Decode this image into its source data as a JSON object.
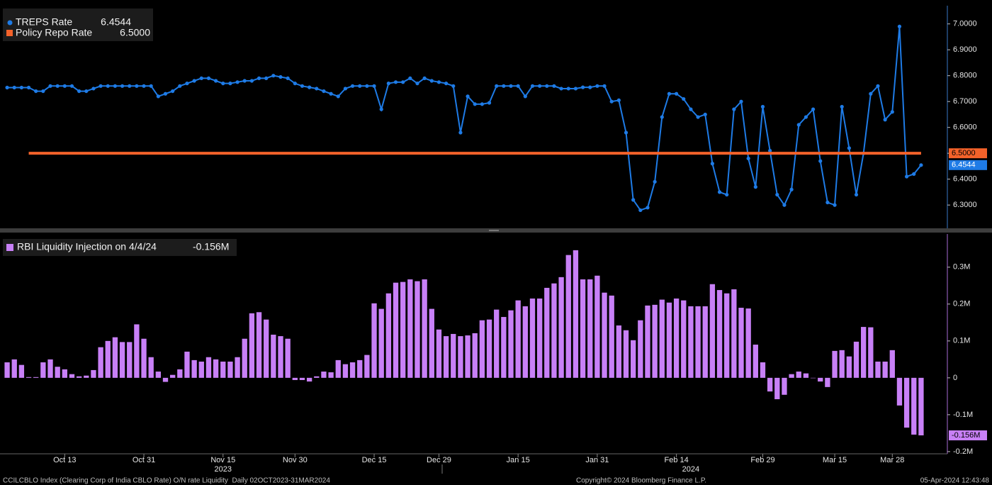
{
  "chart_data": [
    {
      "type": "line",
      "series": [
        {
          "name": "TREPS Rate",
          "color": "#1e7be6",
          "markers": true,
          "legend_value": "6.4544",
          "values": [
            6.754,
            6.754,
            6.754,
            6.754,
            6.74,
            6.74,
            6.76,
            6.76,
            6.76,
            6.76,
            6.74,
            6.74,
            6.75,
            6.76,
            6.76,
            6.76,
            6.76,
            6.76,
            6.76,
            6.76,
            6.76,
            6.72,
            6.73,
            6.74,
            6.76,
            6.77,
            6.78,
            6.79,
            6.79,
            6.78,
            6.77,
            6.77,
            6.775,
            6.78,
            6.78,
            6.79,
            6.79,
            6.8,
            6.795,
            6.79,
            6.77,
            6.76,
            6.755,
            6.75,
            6.74,
            6.73,
            6.72,
            6.75,
            6.76,
            6.76,
            6.76,
            6.76,
            6.67,
            6.77,
            6.775,
            6.775,
            6.79,
            6.77,
            6.79,
            6.78,
            6.775,
            6.77,
            6.76,
            6.58,
            6.72,
            6.69,
            6.69,
            6.695,
            6.76,
            6.76,
            6.76,
            6.76,
            6.72,
            6.76,
            6.76,
            6.76,
            6.76,
            6.75,
            6.75,
            6.75,
            6.755,
            6.755,
            6.76,
            6.76,
            6.7,
            6.705,
            6.58,
            6.32,
            6.28,
            6.29,
            6.39,
            6.64,
            6.73,
            6.73,
            6.71,
            6.67,
            6.64,
            6.65,
            6.46,
            6.35,
            6.34,
            6.67,
            6.7,
            6.48,
            6.37,
            6.68,
            6.51,
            6.34,
            6.3,
            6.36,
            6.61,
            6.64,
            6.67,
            6.47,
            6.31,
            6.3,
            6.68,
            6.52,
            6.34,
            6.5,
            6.73,
            6.76,
            6.63,
            6.66,
            6.99,
            6.41,
            6.42,
            6.4544
          ]
        },
        {
          "name": "Policy Repo Rate",
          "color": "#f4622a",
          "markers": false,
          "legend_value": "6.5000",
          "values": [
            null,
            null,
            null,
            6.5,
            6.5,
            6.5,
            6.5,
            6.5,
            6.5,
            6.5,
            6.5,
            6.5,
            6.5,
            6.5,
            6.5,
            6.5,
            6.5,
            6.5,
            6.5,
            6.5,
            6.5,
            6.5,
            6.5,
            6.5,
            6.5,
            6.5,
            6.5,
            6.5,
            6.5,
            6.5,
            6.5,
            6.5,
            6.5,
            6.5,
            6.5,
            6.5,
            6.5,
            6.5,
            6.5,
            6.5,
            6.5,
            6.5,
            6.5,
            6.5,
            6.5,
            6.5,
            6.5,
            6.5,
            6.5,
            6.5,
            6.5,
            6.5,
            6.5,
            6.5,
            6.5,
            6.5,
            6.5,
            6.5,
            6.5,
            6.5,
            6.5,
            6.5,
            6.5,
            6.5,
            6.5,
            6.5,
            6.5,
            6.5,
            6.5,
            6.5,
            6.5,
            6.5,
            6.5,
            6.5,
            6.5,
            6.5,
            6.5,
            6.5,
            6.5,
            6.5,
            6.5,
            6.5,
            6.5,
            6.5,
            6.5,
            6.5,
            6.5,
            6.5,
            6.5,
            6.5,
            6.5,
            6.5,
            6.5,
            6.5,
            6.5,
            6.5,
            6.5,
            6.5,
            6.5,
            6.5,
            6.5,
            6.5,
            6.5,
            6.5,
            6.5,
            6.5,
            6.5,
            6.5,
            6.5,
            6.5,
            6.5,
            6.5,
            6.5,
            6.5,
            6.5,
            6.5,
            6.5,
            6.5,
            6.5,
            6.5,
            6.5,
            6.5,
            6.5,
            6.5,
            6.5,
            6.5,
            6.5,
            6.5
          ]
        }
      ],
      "ylim": [
        6.21,
        7.065
      ],
      "yticks": [
        {
          "value": 6.3,
          "label": "6.3000"
        },
        {
          "value": 6.4,
          "label": "6.4000"
        },
        {
          "value": 6.5,
          "label": "6.5000"
        },
        {
          "value": 6.6,
          "label": "6.6000"
        },
        {
          "value": 6.7,
          "label": "6.7000"
        },
        {
          "value": 6.8,
          "label": "6.8000"
        },
        {
          "value": 6.9,
          "label": "6.9000"
        },
        {
          "value": 7.0,
          "label": "7.0000"
        }
      ],
      "grid": false
    },
    {
      "type": "bar",
      "categories": [
        null,
        null,
        null,
        null,
        null,
        null,
        null,
        null,
        "Oct 13",
        null,
        null,
        null,
        null,
        null,
        null,
        null,
        null,
        null,
        null,
        "Oct 31",
        null,
        null,
        null,
        null,
        null,
        null,
        null,
        null,
        null,
        null,
        "Nov 15",
        null,
        null,
        null,
        null,
        null,
        null,
        null,
        null,
        null,
        "Nov 30",
        null,
        null,
        null,
        null,
        null,
        null,
        null,
        null,
        null,
        null,
        "Dec 15",
        null,
        null,
        null,
        null,
        null,
        null,
        null,
        null,
        "Dec 29",
        null,
        null,
        null,
        null,
        null,
        null,
        null,
        null,
        null,
        null,
        "Jan 15",
        null,
        null,
        null,
        null,
        null,
        null,
        null,
        null,
        null,
        null,
        "Jan 31",
        null,
        null,
        null,
        null,
        null,
        null,
        null,
        null,
        null,
        null,
        "Feb 14",
        null,
        null,
        null,
        null,
        null,
        null,
        null,
        null,
        null,
        null,
        null,
        "Feb 29",
        null,
        null,
        null,
        null,
        null,
        null,
        null,
        null,
        null,
        "Mar 15",
        null,
        null,
        null,
        null,
        null,
        null,
        null,
        "Mar 28",
        null,
        null,
        null,
        null
      ],
      "x_groups": [
        {
          "value": 30,
          "label": "2023"
        },
        {
          "value": 95,
          "label": "2024"
        }
      ],
      "series": [
        {
          "name": "RBI Liquidity Injection on 4/4/24",
          "color": "#c880f7",
          "legend_value": "-0.156M",
          "values": [
            0.042,
            0.05,
            0.035,
            0.002,
            0.002,
            0.042,
            0.05,
            0.03,
            0.023,
            0.01,
            0.004,
            0.006,
            0.021,
            0.083,
            0.1,
            0.11,
            0.097,
            0.097,
            0.145,
            0.106,
            0.056,
            0.017,
            -0.011,
            0.008,
            0.023,
            0.071,
            0.048,
            0.044,
            0.056,
            0.05,
            0.044,
            0.044,
            0.056,
            0.106,
            0.175,
            0.178,
            0.158,
            0.117,
            0.113,
            0.106,
            -0.006,
            -0.006,
            -0.01,
            0.004,
            0.017,
            0.015,
            0.048,
            0.037,
            0.042,
            0.048,
            0.062,
            0.202,
            0.187,
            0.229,
            0.258,
            0.26,
            0.267,
            0.262,
            0.267,
            0.187,
            0.131,
            0.113,
            0.119,
            0.113,
            0.115,
            0.121,
            0.156,
            0.158,
            0.185,
            0.165,
            0.183,
            0.21,
            0.194,
            0.215,
            0.215,
            0.244,
            0.256,
            0.273,
            0.333,
            0.346,
            0.267,
            0.267,
            0.277,
            0.231,
            0.223,
            0.142,
            0.129,
            0.102,
            0.156,
            0.196,
            0.198,
            0.212,
            0.204,
            0.215,
            0.21,
            0.194,
            0.194,
            0.194,
            0.254,
            0.238,
            0.229,
            0.24,
            0.19,
            0.188,
            0.09,
            0.042,
            -0.037,
            -0.058,
            -0.046,
            0.01,
            0.017,
            0.012,
            0.0,
            -0.01,
            -0.025,
            0.073,
            0.075,
            0.058,
            0.098,
            0.138,
            0.137,
            0.044,
            0.044,
            0.075,
            -0.075,
            -0.135,
            -0.154,
            -0.156
          ]
        }
      ],
      "ylim": [
        -0.206,
        0.39
      ],
      "yticks": [
        {
          "value": -0.2,
          "label": "-0.2M"
        },
        {
          "value": -0.1,
          "label": "-0.1M"
        },
        0,
        {
          "value": 0.1,
          "label": "0.1M"
        },
        {
          "value": 0.2,
          "label": "0.2M"
        },
        {
          "value": 0.3,
          "label": "0.3M"
        }
      ],
      "grid": false
    }
  ],
  "footer": {
    "left": "CCILCBLO Index (Clearing Corp of India CBLO Rate) O/N rate Liquidity  Daily 02OCT2023-31MAR2024",
    "center": "Copyright© 2024 Bloomberg Finance L.P.",
    "right": "05-Apr-2024 12:43:48"
  }
}
